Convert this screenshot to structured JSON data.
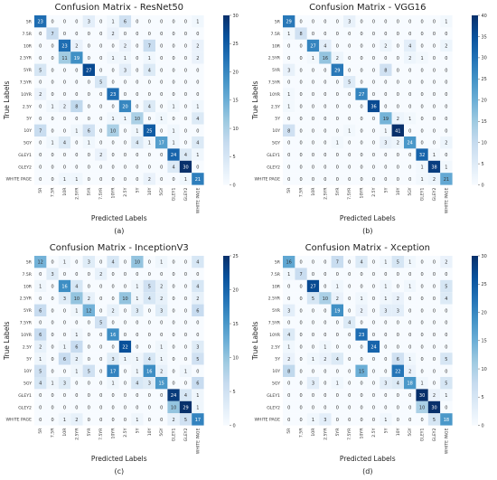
{
  "figure": {
    "classes": [
      "5R",
      "7.5R",
      "10R",
      "2.5YR",
      "5YR",
      "7.5YR",
      "10YR",
      "2.5Y",
      "5Y",
      "10Y",
      "5GY",
      "GLEY1",
      "GLEY2",
      "WHITE PAGE"
    ]
  },
  "chart_data": [
    {
      "type": "heatmap",
      "title": "Confusion Matrix - ResNet50",
      "xlabel": "Predicted Labels",
      "ylabel": "True Labels",
      "caption": "(a)",
      "categories": [
        "5R",
        "7.5R",
        "10R",
        "2.5YR",
        "5YR",
        "7.5YR",
        "10YR",
        "2.5Y",
        "5Y",
        "10Y",
        "5GY",
        "GLEY1",
        "GLEY2",
        "WHITE PAGE"
      ],
      "colorbar": {
        "min": 0,
        "max": 30,
        "ticks": [
          0,
          5,
          10,
          15,
          20,
          25,
          30
        ]
      },
      "matrix": [
        [
          23,
          0,
          0,
          0,
          3,
          0,
          1,
          6,
          0,
          0,
          0,
          0,
          0,
          1
        ],
        [
          0,
          7,
          0,
          0,
          0,
          0,
          2,
          0,
          0,
          0,
          0,
          0,
          0,
          0
        ],
        [
          0,
          0,
          23,
          2,
          0,
          0,
          0,
          2,
          0,
          7,
          0,
          0,
          0,
          2
        ],
        [
          0,
          0,
          11,
          19,
          0,
          0,
          1,
          1,
          0,
          1,
          0,
          0,
          0,
          2
        ],
        [
          5,
          0,
          0,
          0,
          27,
          0,
          0,
          3,
          0,
          4,
          0,
          0,
          0,
          0
        ],
        [
          0,
          0,
          0,
          0,
          0,
          5,
          0,
          0,
          0,
          0,
          0,
          0,
          0,
          0
        ],
        [
          2,
          0,
          0,
          0,
          0,
          0,
          23,
          0,
          0,
          0,
          0,
          0,
          0,
          0
        ],
        [
          0,
          1,
          2,
          8,
          0,
          0,
          0,
          20,
          0,
          4,
          0,
          1,
          0,
          1
        ],
        [
          0,
          0,
          0,
          0,
          0,
          0,
          1,
          1,
          10,
          0,
          1,
          0,
          0,
          4
        ],
        [
          7,
          0,
          0,
          1,
          6,
          0,
          10,
          0,
          1,
          25,
          0,
          1,
          0,
          0
        ],
        [
          0,
          1,
          4,
          0,
          1,
          0,
          0,
          0,
          4,
          1,
          17,
          1,
          0,
          4
        ],
        [
          0,
          0,
          0,
          0,
          0,
          2,
          0,
          0,
          0,
          0,
          0,
          24,
          4,
          1
        ],
        [
          0,
          0,
          0,
          0,
          0,
          0,
          0,
          0,
          0,
          0,
          0,
          4,
          30,
          0
        ],
        [
          0,
          0,
          1,
          1,
          0,
          0,
          0,
          0,
          0,
          2,
          0,
          0,
          1,
          21
        ]
      ]
    },
    {
      "type": "heatmap",
      "title": "Confusion Matrix - VGG16",
      "xlabel": "Predicted Labels",
      "ylabel": "True Labels",
      "caption": "(b)",
      "categories": [
        "5R",
        "7.5R",
        "10R",
        "2.5YR",
        "5YR",
        "7.5YR",
        "10YR",
        "2.5Y",
        "5Y",
        "10Y",
        "5GY",
        "GLEY1",
        "GLEY2",
        "WHITE PAGE"
      ],
      "colorbar": {
        "min": 0,
        "max": 40,
        "ticks": [
          0,
          5,
          10,
          15,
          20,
          25,
          30,
          35,
          40
        ]
      },
      "matrix": [
        [
          29,
          0,
          0,
          0,
          0,
          3,
          0,
          0,
          0,
          0,
          0,
          0,
          0,
          1
        ],
        [
          1,
          8,
          0,
          0,
          0,
          0,
          0,
          0,
          0,
          0,
          0,
          0,
          0,
          0
        ],
        [
          0,
          0,
          27,
          4,
          0,
          0,
          0,
          0,
          2,
          0,
          4,
          0,
          0,
          2
        ],
        [
          0,
          0,
          1,
          16,
          2,
          0,
          0,
          0,
          0,
          0,
          2,
          1,
          0,
          0
        ],
        [
          3,
          0,
          0,
          0,
          29,
          0,
          0,
          0,
          8,
          0,
          0,
          0,
          0,
          0
        ],
        [
          0,
          0,
          0,
          0,
          0,
          5,
          0,
          0,
          0,
          0,
          0,
          0,
          0,
          0
        ],
        [
          1,
          0,
          0,
          0,
          0,
          0,
          27,
          0,
          0,
          0,
          0,
          0,
          0,
          0
        ],
        [
          1,
          0,
          0,
          0,
          0,
          0,
          0,
          36,
          0,
          0,
          0,
          0,
          0,
          0
        ],
        [
          0,
          0,
          0,
          0,
          0,
          0,
          0,
          0,
          19,
          2,
          1,
          0,
          0,
          0
        ],
        [
          8,
          0,
          0,
          0,
          0,
          1,
          0,
          0,
          1,
          41,
          0,
          0,
          0,
          0
        ],
        [
          0,
          0,
          0,
          0,
          1,
          0,
          0,
          0,
          3,
          2,
          24,
          0,
          0,
          2
        ],
        [
          0,
          0,
          0,
          0,
          0,
          0,
          0,
          0,
          0,
          0,
          0,
          32,
          1,
          0
        ],
        [
          0,
          0,
          0,
          0,
          0,
          0,
          0,
          0,
          0,
          0,
          0,
          1,
          38,
          1
        ],
        [
          0,
          0,
          0,
          0,
          0,
          0,
          0,
          0,
          0,
          0,
          0,
          1,
          2,
          21
        ]
      ]
    },
    {
      "type": "heatmap",
      "title": "Confusion Matrix - InceptionV3",
      "xlabel": "Predicted Labels",
      "ylabel": "True Labels",
      "caption": "(c)",
      "categories": [
        "5R",
        "7.5R",
        "10R",
        "2.5YR",
        "5YR",
        "7.5YR",
        "10YR",
        "2.5Y",
        "5Y",
        "10Y",
        "5GY",
        "GLEY1",
        "GLEY2",
        "WHITE PAGE"
      ],
      "colorbar": {
        "min": 0,
        "max": 25,
        "ticks": [
          0,
          5,
          10,
          15,
          20,
          25
        ]
      },
      "matrix": [
        [
          12,
          0,
          1,
          0,
          3,
          0,
          4,
          0,
          10,
          0,
          1,
          0,
          0,
          4
        ],
        [
          0,
          3,
          0,
          0,
          0,
          2,
          0,
          0,
          0,
          0,
          0,
          0,
          0,
          0
        ],
        [
          1,
          0,
          16,
          4,
          0,
          0,
          0,
          0,
          1,
          5,
          2,
          0,
          0,
          4
        ],
        [
          0,
          0,
          3,
          10,
          2,
          0,
          0,
          10,
          1,
          4,
          2,
          0,
          0,
          2
        ],
        [
          6,
          0,
          0,
          1,
          12,
          0,
          2,
          0,
          3,
          0,
          3,
          0,
          0,
          6
        ],
        [
          0,
          0,
          0,
          0,
          0,
          5,
          0,
          0,
          0,
          0,
          0,
          0,
          0,
          0
        ],
        [
          6,
          0,
          0,
          1,
          0,
          0,
          16,
          0,
          0,
          0,
          0,
          0,
          0,
          0
        ],
        [
          2,
          0,
          1,
          6,
          0,
          0,
          0,
          22,
          0,
          0,
          1,
          0,
          0,
          3
        ],
        [
          1,
          0,
          6,
          2,
          0,
          0,
          3,
          1,
          1,
          4,
          1,
          0,
          0,
          5
        ],
        [
          5,
          0,
          0,
          1,
          5,
          0,
          17,
          0,
          1,
          16,
          2,
          0,
          1,
          0
        ],
        [
          4,
          1,
          3,
          0,
          0,
          0,
          1,
          0,
          4,
          3,
          15,
          0,
          0,
          6
        ],
        [
          0,
          0,
          0,
          0,
          0,
          0,
          0,
          0,
          0,
          0,
          0,
          24,
          4,
          1
        ],
        [
          0,
          0,
          0,
          0,
          0,
          0,
          0,
          0,
          0,
          0,
          0,
          10,
          29,
          1
        ],
        [
          0,
          0,
          1,
          2,
          0,
          0,
          0,
          0,
          1,
          0,
          0,
          2,
          5,
          17
        ]
      ]
    },
    {
      "type": "heatmap",
      "title": "Confusion Matrix - Xception",
      "xlabel": "Predicted Labels",
      "ylabel": "True Labels",
      "caption": "(d)",
      "categories": [
        "5R",
        "7.5R",
        "10R",
        "2.5YR",
        "5YR",
        "7.5YR",
        "10YR",
        "2.5Y",
        "5Y",
        "10Y",
        "5GY",
        "GLEY1",
        "GLEY2",
        "WHITE PAGE"
      ],
      "colorbar": {
        "min": 0,
        "max": 30,
        "ticks": [
          0,
          5,
          10,
          15,
          20,
          25,
          30
        ]
      },
      "matrix": [
        [
          16,
          0,
          0,
          0,
          7,
          0,
          4,
          0,
          1,
          5,
          1,
          0,
          0,
          2
        ],
        [
          1,
          7,
          0,
          0,
          0,
          0,
          0,
          0,
          0,
          0,
          0,
          0,
          0,
          0
        ],
        [
          0,
          0,
          27,
          0,
          1,
          0,
          0,
          0,
          1,
          0,
          1,
          0,
          0,
          5
        ],
        [
          0,
          0,
          5,
          10,
          2,
          0,
          1,
          0,
          1,
          2,
          0,
          0,
          0,
          4
        ],
        [
          3,
          0,
          0,
          0,
          19,
          0,
          2,
          0,
          3,
          3,
          0,
          0,
          0,
          0
        ],
        [
          0,
          0,
          0,
          0,
          0,
          4,
          0,
          0,
          0,
          0,
          0,
          0,
          0,
          0
        ],
        [
          4,
          0,
          0,
          0,
          0,
          0,
          23,
          0,
          0,
          0,
          0,
          0,
          0,
          0
        ],
        [
          1,
          0,
          0,
          1,
          0,
          0,
          0,
          24,
          0,
          0,
          0,
          0,
          0,
          0
        ],
        [
          2,
          0,
          1,
          2,
          4,
          0,
          0,
          0,
          0,
          6,
          1,
          0,
          0,
          5
        ],
        [
          8,
          0,
          0,
          0,
          0,
          0,
          15,
          0,
          0,
          22,
          2,
          0,
          0,
          0
        ],
        [
          0,
          0,
          3,
          0,
          1,
          0,
          0,
          0,
          3,
          4,
          18,
          1,
          0,
          5
        ],
        [
          0,
          0,
          0,
          0,
          0,
          0,
          0,
          0,
          0,
          0,
          0,
          30,
          2,
          1
        ],
        [
          0,
          0,
          0,
          0,
          0,
          0,
          0,
          0,
          0,
          0,
          0,
          10,
          30,
          0
        ],
        [
          0,
          0,
          1,
          3,
          0,
          0,
          0,
          0,
          1,
          0,
          0,
          0,
          5,
          18
        ]
      ]
    }
  ]
}
